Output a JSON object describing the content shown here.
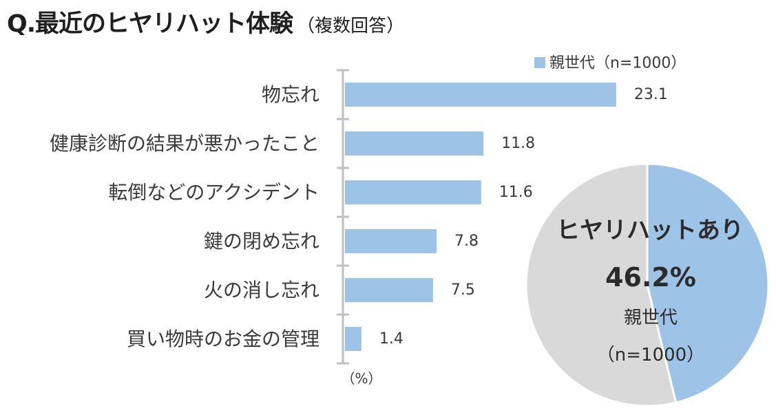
{
  "header": {
    "title": "Q.最近のヒヤリハット体験",
    "subtitle": "（複数回答）"
  },
  "colors": {
    "bar": "#9dc3e6",
    "pie_highlight": "#9dc3e6",
    "pie_rest": "#d9d9d9",
    "axis": "#bfbfbf",
    "text": "#3a3a3a"
  },
  "chart_data": [
    {
      "type": "bar",
      "orientation": "horizontal",
      "categories": [
        "物忘れ",
        "健康診断の結果が悪かったこと",
        "転倒などのアクシデント",
        "鍵の閉め忘れ",
        "火の消し忘れ",
        "買い物時のお金の管理"
      ],
      "series": [
        {
          "name": "親世代（n=1000）",
          "values": [
            23.1,
            11.8,
            11.6,
            7.8,
            7.5,
            1.4
          ]
        }
      ],
      "value_labels": [
        "23.1",
        "11.8",
        "11.6",
        "7.8",
        "7.5",
        "1.4"
      ],
      "unit_label": "（%）",
      "legend": "top-right"
    },
    {
      "type": "pie",
      "slices": [
        {
          "label": "ヒヤリハットあり",
          "value": 46.2
        },
        {
          "label": "",
          "value": 53.8
        }
      ],
      "center_text": {
        "heading": "ヒヤリハットあり",
        "percent": "46.2%",
        "group": "親世代",
        "n": "（n=1000）"
      }
    }
  ]
}
